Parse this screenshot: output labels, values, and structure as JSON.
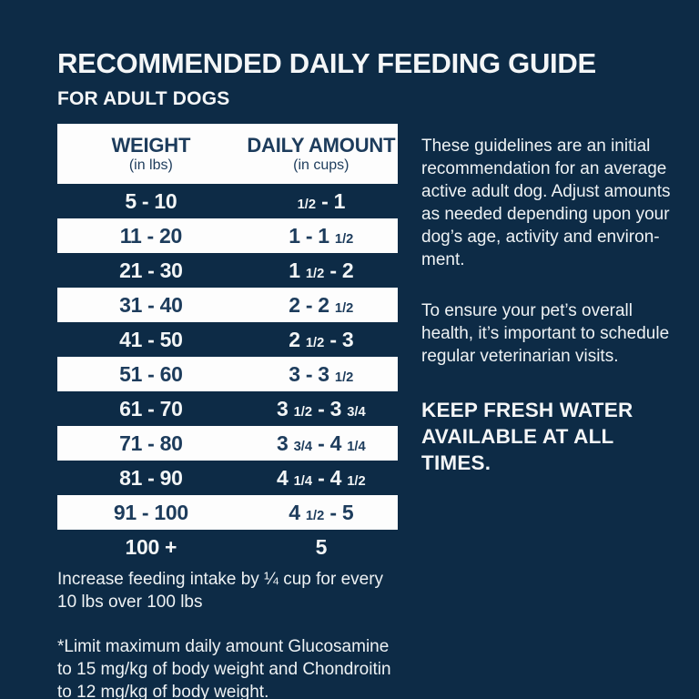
{
  "page": {
    "title": "RECOMMENDED DAILY FEEDING GUIDE",
    "subtitle": "FOR ADULT DOGS"
  },
  "colors": {
    "background_navy": "#0d2b46",
    "row_white": "#fdfdfd",
    "navy_text": "#1d3c5c",
    "white_text": "#f2f5f6"
  },
  "table": {
    "headers": [
      {
        "label": "WEIGHT",
        "sub": "(in lbs)"
      },
      {
        "label": "DAILY AMOUNT",
        "sub": "(in cups)"
      }
    ],
    "rows": [
      {
        "weight": "5 - 10",
        "amount": "1/2 - 1"
      },
      {
        "weight": "11 - 20",
        "amount": "1 - 1 1/2"
      },
      {
        "weight": "21 - 30",
        "amount": "1 1/2 - 2"
      },
      {
        "weight": "31 - 40",
        "amount": "2 - 2 1/2"
      },
      {
        "weight": "41 - 50",
        "amount": "2 1/2 - 3"
      },
      {
        "weight": "51 - 60",
        "amount": "3 - 3 1/2"
      },
      {
        "weight": "61 - 70",
        "amount": "3 1/2 - 3 3/4"
      },
      {
        "weight": "71 - 80",
        "amount": "3 3/4 - 4 1/4"
      },
      {
        "weight": "81 - 90",
        "amount": "4 1/4 - 4 1/2"
      },
      {
        "weight": "91 - 100",
        "amount": "4 1/2 - 5"
      },
      {
        "weight": "100 +",
        "amount": "5"
      }
    ]
  },
  "notes": {
    "increase": "Increase feeding intake by ¼ cup for every\n10 lbs over 100 lbs",
    "limit": "*Limit maximum daily amount Glucosamine\nto 15 mg/kg of body weight and Chondroitin\nto 12 mg/kg of body weight."
  },
  "sidebar": {
    "para1": "These guidelines are an initial\nrecommendation for an average\nactive adult dog. Adjust amounts\nas needed depending upon your\ndog’s age, activity and environ-\nment.",
    "para2": "To ensure your pet’s overall\nhealth, it’s important to schedule\nregular  veterinarian visits.",
    "emphasis": "KEEP FRESH WATER\nAVAILABLE AT ALL\nTIMES."
  }
}
